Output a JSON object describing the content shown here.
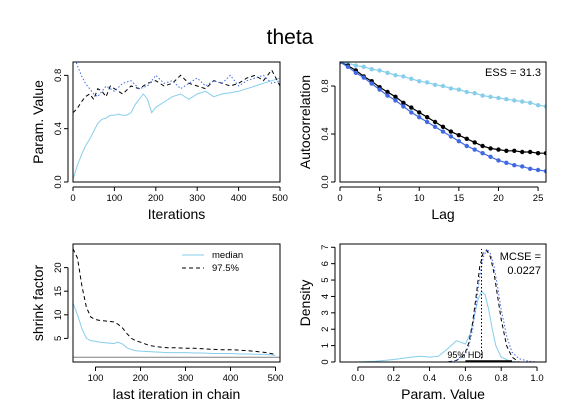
{
  "title": "theta",
  "chart_data": [
    {
      "type": "line",
      "panel": "trace",
      "xlabel": "Iterations",
      "ylabel": "Param. Value",
      "xlim": [
        0,
        500
      ],
      "ylim": [
        0,
        0.9
      ],
      "xticks": [
        0,
        100,
        200,
        300,
        400,
        500
      ],
      "yticks": [
        0.0,
        0.4,
        0.8
      ],
      "ytick_labels": [
        "0.0",
        "0.4",
        "0.8"
      ],
      "series": [
        {
          "color": "#87ceeb",
          "dash": "solid",
          "x": [
            0,
            10,
            20,
            30,
            40,
            50,
            60,
            70,
            80,
            90,
            100,
            110,
            120,
            130,
            140,
            150,
            160,
            170,
            180,
            190,
            200,
            220,
            240,
            260,
            280,
            300,
            320,
            340,
            360,
            380,
            400,
            420,
            440,
            460,
            480,
            500
          ],
          "y": [
            0.02,
            0.12,
            0.2,
            0.27,
            0.32,
            0.38,
            0.44,
            0.47,
            0.48,
            0.5,
            0.5,
            0.51,
            0.5,
            0.5,
            0.52,
            0.58,
            0.62,
            0.66,
            0.62,
            0.52,
            0.56,
            0.6,
            0.64,
            0.66,
            0.62,
            0.66,
            0.68,
            0.64,
            0.66,
            0.67,
            0.68,
            0.7,
            0.72,
            0.74,
            0.76,
            0.78
          ]
        },
        {
          "color": "#000000",
          "dash": "dashed",
          "x": [
            0,
            10,
            20,
            30,
            40,
            50,
            60,
            70,
            80,
            90,
            100,
            120,
            140,
            160,
            180,
            200,
            220,
            240,
            260,
            280,
            300,
            320,
            340,
            360,
            380,
            400,
            420,
            440,
            460,
            480,
            500
          ],
          "y": [
            0.52,
            0.55,
            0.6,
            0.64,
            0.66,
            0.62,
            0.7,
            0.68,
            0.64,
            0.72,
            0.7,
            0.66,
            0.72,
            0.7,
            0.74,
            0.76,
            0.72,
            0.74,
            0.8,
            0.74,
            0.72,
            0.7,
            0.76,
            0.74,
            0.72,
            0.74,
            0.78,
            0.8,
            0.76,
            0.84,
            0.72
          ]
        },
        {
          "color": "#4169e1",
          "dash": "dotted",
          "x": [
            0,
            10,
            20,
            30,
            40,
            50,
            60,
            80,
            100,
            120,
            140,
            160,
            180,
            200,
            220,
            240,
            260,
            280,
            300,
            320,
            340,
            360,
            380,
            400,
            420,
            440,
            460,
            480,
            500
          ],
          "y": [
            0.97,
            0.88,
            0.8,
            0.74,
            0.7,
            0.66,
            0.64,
            0.72,
            0.68,
            0.74,
            0.76,
            0.7,
            0.72,
            0.8,
            0.74,
            0.76,
            0.7,
            0.74,
            0.78,
            0.72,
            0.76,
            0.74,
            0.8,
            0.72,
            0.76,
            0.78,
            0.8,
            0.74,
            0.76
          ]
        }
      ]
    },
    {
      "type": "line",
      "panel": "autocorrelation",
      "xlabel": "Lag",
      "ylabel": "Autocorrelation",
      "xlim": [
        0,
        26
      ],
      "ylim": [
        0,
        1
      ],
      "xticks": [
        0,
        5,
        10,
        15,
        20,
        25
      ],
      "yticks": [
        0.0,
        0.4,
        0.8
      ],
      "ytick_labels": [
        "0.0",
        "0.4",
        "0.8"
      ],
      "annotation": "ESS = 31.3",
      "reference_line": 0,
      "series": [
        {
          "color": "#87ceeb",
          "x": [
            0,
            1,
            2,
            3,
            4,
            5,
            6,
            7,
            8,
            9,
            10,
            11,
            12,
            13,
            14,
            15,
            16,
            17,
            18,
            19,
            20,
            21,
            22,
            23,
            24,
            25,
            26
          ],
          "y": [
            1.0,
            0.99,
            0.97,
            0.96,
            0.94,
            0.93,
            0.91,
            0.89,
            0.88,
            0.86,
            0.84,
            0.83,
            0.81,
            0.8,
            0.78,
            0.77,
            0.75,
            0.74,
            0.72,
            0.71,
            0.7,
            0.69,
            0.68,
            0.67,
            0.66,
            0.64,
            0.63
          ]
        },
        {
          "color": "#000000",
          "x": [
            0,
            1,
            2,
            3,
            4,
            5,
            6,
            7,
            8,
            9,
            10,
            11,
            12,
            13,
            14,
            15,
            16,
            17,
            18,
            19,
            20,
            21,
            22,
            23,
            24,
            25,
            26
          ],
          "y": [
            1.0,
            0.97,
            0.93,
            0.88,
            0.84,
            0.79,
            0.75,
            0.71,
            0.66,
            0.62,
            0.58,
            0.54,
            0.5,
            0.46,
            0.42,
            0.39,
            0.36,
            0.33,
            0.3,
            0.28,
            0.27,
            0.26,
            0.26,
            0.25,
            0.25,
            0.24,
            0.24
          ]
        },
        {
          "color": "#4169e1",
          "x": [
            0,
            1,
            2,
            3,
            4,
            5,
            6,
            7,
            8,
            9,
            10,
            11,
            12,
            13,
            14,
            15,
            16,
            17,
            18,
            19,
            20,
            21,
            22,
            23,
            24,
            25,
            26
          ],
          "y": [
            1.0,
            0.96,
            0.91,
            0.87,
            0.82,
            0.77,
            0.72,
            0.68,
            0.63,
            0.58,
            0.54,
            0.5,
            0.46,
            0.42,
            0.38,
            0.34,
            0.3,
            0.27,
            0.24,
            0.21,
            0.18,
            0.16,
            0.14,
            0.13,
            0.11,
            0.1,
            0.09
          ]
        }
      ]
    },
    {
      "type": "line",
      "panel": "gelman",
      "xlabel": "last iteration in chain",
      "ylabel": "shrink factor",
      "xlim": [
        50,
        510
      ],
      "ylim": [
        0,
        25
      ],
      "xticks": [
        100,
        200,
        300,
        400,
        500
      ],
      "yticks": [
        5,
        10,
        15,
        20
      ],
      "reference_line": 1,
      "series": [
        {
          "name": "median",
          "color": "#87ceeb",
          "dash": "solid",
          "x": [
            50,
            60,
            70,
            80,
            90,
            100,
            110,
            120,
            130,
            140,
            150,
            160,
            170,
            180,
            190,
            200,
            220,
            240,
            260,
            280,
            300,
            320,
            340,
            360,
            380,
            400,
            420,
            440,
            460,
            480,
            500
          ],
          "y": [
            12.5,
            10.0,
            7.0,
            5.0,
            4.5,
            4.4,
            4.2,
            4.1,
            4.0,
            3.9,
            4.2,
            3.8,
            3.0,
            2.6,
            2.4,
            2.3,
            2.2,
            2.1,
            2.0,
            2.0,
            2.0,
            1.9,
            1.9,
            1.8,
            1.8,
            1.8,
            1.7,
            1.7,
            1.6,
            1.6,
            1.4
          ]
        },
        {
          "name": "97.5%",
          "color": "#000000",
          "dash": "dashed",
          "x": [
            50,
            60,
            70,
            80,
            90,
            100,
            110,
            120,
            130,
            140,
            150,
            160,
            170,
            180,
            190,
            200,
            220,
            240,
            260,
            280,
            300,
            320,
            340,
            360,
            380,
            400,
            420,
            440,
            460,
            480,
            500
          ],
          "y": [
            24.0,
            22.0,
            16.0,
            11.5,
            9.5,
            9.0,
            8.8,
            8.7,
            8.6,
            8.5,
            8.0,
            7.2,
            6.0,
            5.0,
            4.5,
            4.2,
            3.5,
            3.2,
            3.0,
            3.0,
            2.9,
            2.9,
            2.8,
            2.7,
            2.6,
            2.6,
            2.5,
            2.4,
            2.2,
            2.0,
            1.6
          ]
        }
      ]
    },
    {
      "type": "line",
      "panel": "density",
      "xlabel": "Param. Value",
      "ylabel": "Density",
      "xlim": [
        -0.1,
        1.05
      ],
      "ylim": [
        0,
        7.2
      ],
      "xticks": [
        0.0,
        0.2,
        0.4,
        0.6,
        0.8,
        1.0
      ],
      "xtick_labels": [
        "0.0",
        "0.2",
        "0.4",
        "0.6",
        "0.8",
        "1.0"
      ],
      "yticks": [
        0,
        1,
        2,
        3,
        4,
        5,
        6,
        7
      ],
      "annotation": [
        "MCSE =",
        "0.0227"
      ],
      "hdi_label": "95% HDI",
      "hdi_range": [
        0.6,
        0.86
      ],
      "mean_line": 0.69,
      "series": [
        {
          "color": "#87ceeb",
          "dash": "solid",
          "x": [
            0.0,
            0.1,
            0.2,
            0.3,
            0.35,
            0.4,
            0.45,
            0.5,
            0.55,
            0.6,
            0.63,
            0.65,
            0.67,
            0.69,
            0.71,
            0.73,
            0.75,
            0.77,
            0.8,
            0.85,
            0.9
          ],
          "y": [
            0.0,
            0.05,
            0.15,
            0.3,
            0.35,
            0.3,
            0.35,
            0.8,
            1.3,
            1.1,
            1.8,
            2.8,
            3.8,
            4.3,
            4.1,
            3.2,
            2.0,
            1.0,
            0.3,
            0.05,
            0.0
          ]
        },
        {
          "color": "#000000",
          "dash": "dashed",
          "x": [
            0.5,
            0.55,
            0.58,
            0.6,
            0.62,
            0.64,
            0.66,
            0.68,
            0.7,
            0.72,
            0.74,
            0.76,
            0.78,
            0.8,
            0.83,
            0.86,
            0.9
          ],
          "y": [
            0.0,
            0.1,
            0.3,
            0.6,
            1.2,
            2.4,
            4.0,
            5.8,
            6.7,
            6.8,
            6.4,
            5.4,
            4.0,
            2.6,
            1.0,
            0.3,
            0.0
          ]
        },
        {
          "color": "#4169e1",
          "dash": "dotted",
          "x": [
            0.5,
            0.55,
            0.58,
            0.6,
            0.62,
            0.64,
            0.66,
            0.68,
            0.7,
            0.72,
            0.74,
            0.76,
            0.78,
            0.8,
            0.83,
            0.86,
            0.9,
            0.95,
            1.0
          ],
          "y": [
            0.0,
            0.1,
            0.3,
            0.5,
            1.0,
            2.0,
            3.5,
            5.2,
            6.4,
            6.9,
            6.6,
            5.8,
            4.6,
            3.2,
            1.6,
            0.6,
            0.2,
            0.05,
            0.0
          ]
        }
      ]
    }
  ],
  "legend": {
    "entries": [
      "median",
      "97.5%"
    ],
    "placement": "top-right"
  }
}
